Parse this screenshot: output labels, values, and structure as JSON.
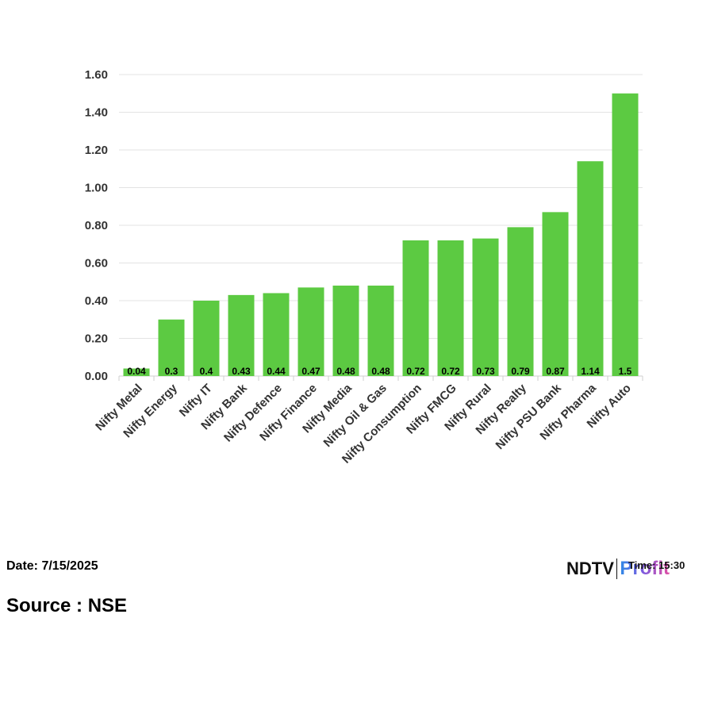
{
  "chart_data": {
    "type": "bar",
    "categories": [
      "Nifty Metal",
      "Nifty Energy",
      "Nifty IT",
      "Nifty Bank",
      "Nifty Defence",
      "Nifty Finance",
      "Nifty Media",
      "Nifty Oil & Gas",
      "Nifty Consumption",
      "Nifty FMCG",
      "Nifty Rural",
      "Nifty Realty",
      "Nifty PSU Bank",
      "Nifty Pharma",
      "Nifty Auto"
    ],
    "values": [
      0.04,
      0.3,
      0.4,
      0.43,
      0.44,
      0.47,
      0.48,
      0.48,
      0.72,
      0.72,
      0.73,
      0.79,
      0.87,
      1.14,
      1.5
    ],
    "value_labels": [
      "0.04",
      "0.3",
      "0.4",
      "0.43",
      "0.44",
      "0.47",
      "0.48",
      "0.48",
      "0.72",
      "0.72",
      "0.73",
      "0.79",
      "0.87",
      "1.14",
      "1.5"
    ],
    "yticks": [
      "0.00",
      "0.20",
      "0.40",
      "0.60",
      "0.80",
      "1.00",
      "1.20",
      "1.40",
      "1.60"
    ],
    "ylim": [
      0,
      1.6
    ],
    "grid": true,
    "bar_color": "#5cca42",
    "title": "",
    "xlabel": "",
    "ylabel": ""
  },
  "footer": {
    "date": "Date: 7/15/2025",
    "source": "Source : NSE",
    "time_overlay": "Time: 15:30"
  },
  "brand": {
    "name_left": "NDTV",
    "name_right": "Profit"
  }
}
